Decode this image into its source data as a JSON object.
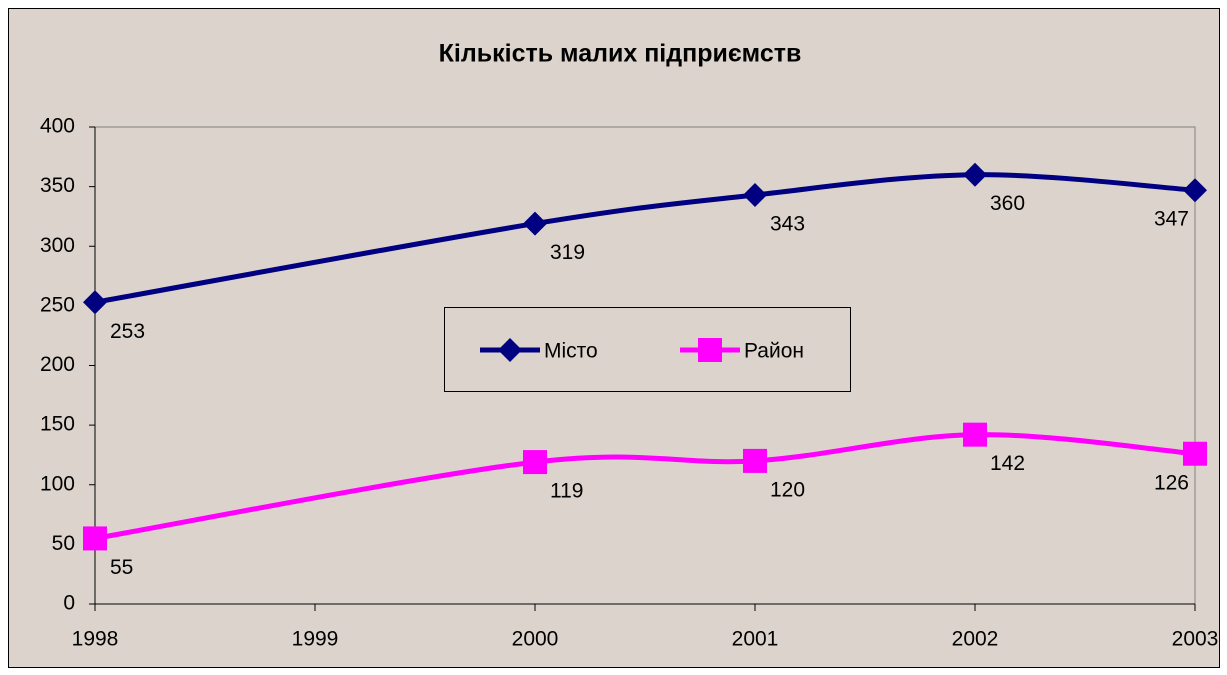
{
  "chart_data": {
    "type": "line",
    "title": "Кількість малих підприємств",
    "x": [
      1998,
      2000,
      2001,
      2002,
      2003
    ],
    "series": [
      {
        "name": "Місто",
        "color": "#000080",
        "marker": "diamond",
        "values": [
          253,
          319,
          343,
          360,
          347
        ]
      },
      {
        "name": "Район",
        "color": "#ff00ff",
        "marker": "square",
        "values": [
          55,
          119,
          120,
          142,
          126
        ]
      }
    ],
    "xlim": [
      1998,
      2003
    ],
    "xticks": [
      1998,
      1999,
      2000,
      2001,
      2002,
      2003
    ],
    "ylim": [
      0,
      400
    ],
    "yticks": [
      0,
      50,
      100,
      150,
      200,
      250,
      300,
      350,
      400
    ],
    "grid": false,
    "smooth": true,
    "legend": "center"
  }
}
